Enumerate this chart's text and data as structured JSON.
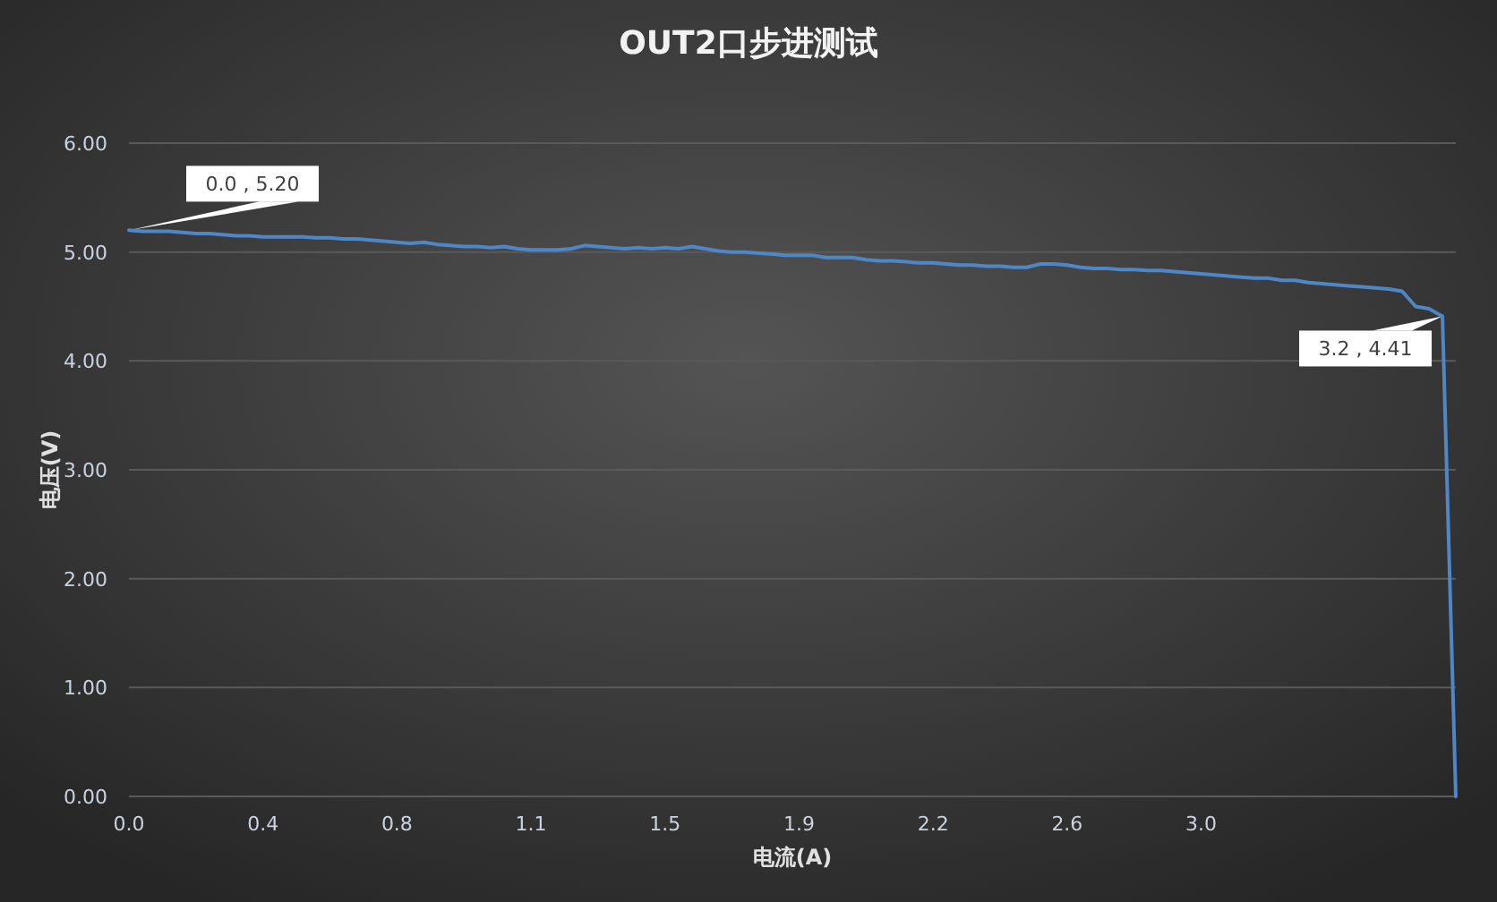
{
  "chart_data": {
    "type": "line",
    "title": "OUT2口步进测试",
    "xlabel": "电流(A)",
    "ylabel": "电压(V)",
    "categories": [
      "0.0",
      null,
      null,
      null,
      null,
      null,
      null,
      null,
      null,
      null,
      "0.4",
      null,
      null,
      null,
      null,
      null,
      null,
      null,
      null,
      null,
      "0.8",
      null,
      null,
      null,
      null,
      null,
      null,
      null,
      null,
      null,
      "1.1",
      null,
      null,
      null,
      null,
      null,
      null,
      null,
      null,
      null,
      "1.5",
      null,
      null,
      null,
      null,
      null,
      null,
      null,
      null,
      null,
      "1.9",
      null,
      null,
      null,
      null,
      null,
      null,
      null,
      null,
      null,
      "2.2",
      null,
      null,
      null,
      null,
      null,
      null,
      null,
      null,
      null,
      "2.6",
      null,
      null,
      null,
      null,
      null,
      null,
      null,
      null,
      null,
      "3.0",
      null,
      null,
      null,
      null,
      null,
      null,
      null,
      null,
      null,
      null,
      null,
      null,
      null,
      null,
      null,
      null,
      null,
      null,
      null
    ],
    "series": [
      {
        "color": "#4f86c6",
        "values": [
          5.2,
          5.19,
          5.19,
          5.19,
          5.18,
          5.17,
          5.17,
          5.16,
          5.15,
          5.15,
          5.14,
          5.14,
          5.14,
          5.14,
          5.13,
          5.13,
          5.12,
          5.12,
          5.11,
          5.1,
          5.09,
          5.08,
          5.09,
          5.07,
          5.06,
          5.05,
          5.05,
          5.04,
          5.05,
          5.03,
          5.02,
          5.02,
          5.02,
          5.03,
          5.06,
          5.05,
          5.04,
          5.03,
          5.04,
          5.03,
          5.04,
          5.03,
          5.05,
          5.03,
          5.01,
          5.0,
          5.0,
          4.99,
          4.98,
          4.97,
          4.97,
          4.97,
          4.95,
          4.95,
          4.95,
          4.93,
          4.92,
          4.92,
          4.91,
          4.9,
          4.9,
          4.89,
          4.88,
          4.88,
          4.87,
          4.87,
          4.86,
          4.86,
          4.89,
          4.89,
          4.88,
          4.86,
          4.85,
          4.85,
          4.84,
          4.84,
          4.83,
          4.83,
          4.82,
          4.81,
          4.8,
          4.79,
          4.78,
          4.77,
          4.76,
          4.76,
          4.74,
          4.74,
          4.72,
          4.71,
          4.7,
          4.69,
          4.68,
          4.67,
          4.66,
          4.64,
          4.5,
          4.48,
          4.41,
          0.0
        ],
        "value_labels": [
          "0.0 , 5.20",
          null,
          null,
          null,
          null,
          null,
          null,
          null,
          null,
          null,
          null,
          null,
          null,
          null,
          null,
          null,
          null,
          null,
          null,
          null,
          null,
          null,
          null,
          null,
          null,
          null,
          null,
          null,
          null,
          null,
          null,
          null,
          null,
          null,
          null,
          null,
          null,
          null,
          null,
          null,
          null,
          null,
          null,
          null,
          null,
          null,
          null,
          null,
          null,
          null,
          null,
          null,
          null,
          null,
          null,
          null,
          null,
          null,
          null,
          null,
          null,
          null,
          null,
          null,
          null,
          null,
          null,
          null,
          null,
          null,
          null,
          null,
          null,
          null,
          null,
          null,
          null,
          null,
          null,
          null,
          null,
          null,
          null,
          null,
          null,
          null,
          null,
          null,
          null,
          null,
          null,
          null,
          null,
          null,
          null,
          null,
          null,
          null,
          "3.2 , 4.41",
          null
        ]
      }
    ],
    "ylim": [
      0,
      6
    ],
    "yticks": [
      {
        "value": 0,
        "label": "0.00"
      },
      {
        "value": 1,
        "label": "1.00"
      },
      {
        "value": 2,
        "label": "2.00"
      },
      {
        "value": 3,
        "label": "3.00"
      },
      {
        "value": 4,
        "label": "4.00"
      },
      {
        "value": 5,
        "label": "5.00"
      },
      {
        "value": 6,
        "label": "6.00"
      }
    ],
    "grid": "y"
  }
}
